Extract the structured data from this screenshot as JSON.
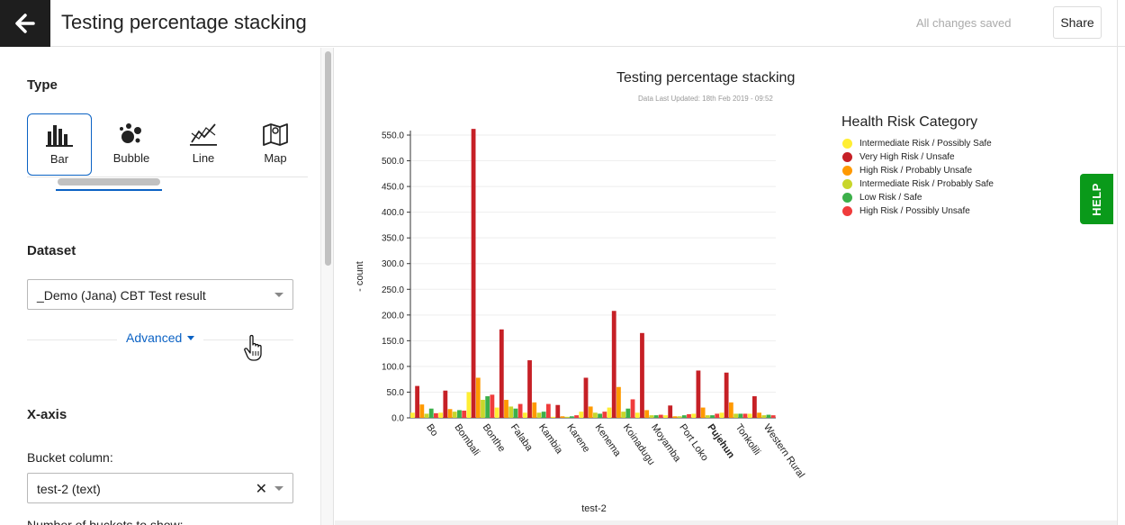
{
  "header": {
    "title": "Testing percentage stacking",
    "status": "All changes saved",
    "share_label": "Share"
  },
  "sidebar": {
    "type_heading": "Type",
    "types": [
      {
        "label": "Bar",
        "icon": "bar-chart-icon",
        "selected": true
      },
      {
        "label": "Bubble",
        "icon": "bubble-chart-icon",
        "selected": false
      },
      {
        "label": "Line",
        "icon": "line-chart-icon",
        "selected": false
      },
      {
        "label": "Map",
        "icon": "map-icon",
        "selected": false
      }
    ],
    "dataset_heading": "Dataset",
    "dataset_value": "_Demo (Jana) CBT Test result",
    "advanced_label": "Advanced",
    "xaxis_heading": "X-axis",
    "bucket_label": "Bucket column:",
    "bucket_value": "test-2 (text)",
    "buckets_count_label": "Number of buckets to show:"
  },
  "help_label": "HELP",
  "colors": {
    "accent": "#0b62c4",
    "help": "#0a9a1a"
  },
  "chart_data": {
    "type": "bar",
    "title": "Testing percentage stacking",
    "subtitle": "Data Last Updated: 18th Feb 2019 - 09:52",
    "xlabel": "test-2",
    "ylabel": "- count",
    "ylim": [
      0,
      550
    ],
    "yticks": [
      "0.0",
      "50.0",
      "100.0",
      "150.0",
      "200.0",
      "250.0",
      "300.0",
      "350.0",
      "400.0",
      "450.0",
      "500.0",
      "550.0"
    ],
    "grid": true,
    "legend_title": "Health Risk Category",
    "legend_position": "top-right",
    "categories": [
      "Bo",
      "Bombali",
      "Bonthe",
      "Falaba",
      "Kambia",
      "Karene",
      "Kenema",
      "Koinadugu",
      "Moyamba",
      "Port Loko",
      "Pujehun",
      "Tonkolili",
      "Western Rural"
    ],
    "series": [
      {
        "name": "Intermediate Risk / Possibly Safe",
        "color": "#ffee33",
        "values": [
          10,
          10,
          50,
          20,
          10,
          2,
          12,
          20,
          10,
          5,
          8,
          10,
          8
        ]
      },
      {
        "name": "Very High Risk / Unsafe",
        "color": "#c62026",
        "values": [
          62,
          53,
          562,
          172,
          112,
          25,
          78,
          208,
          165,
          24,
          92,
          88,
          42
        ]
      },
      {
        "name": "High Risk / Probably Unsafe",
        "color": "#ff9900",
        "values": [
          26,
          17,
          78,
          35,
          30,
          3,
          22,
          60,
          15,
          3,
          20,
          30,
          10
        ]
      },
      {
        "name": "Intermediate Risk / Probably Safe",
        "color": "#c8d62b",
        "values": [
          8,
          12,
          35,
          22,
          10,
          2,
          10,
          12,
          5,
          3,
          5,
          8,
          5
        ]
      },
      {
        "name": "Low Risk / Safe",
        "color": "#3cb04a",
        "values": [
          18,
          15,
          42,
          18,
          12,
          3,
          8,
          18,
          5,
          5,
          5,
          8,
          6
        ]
      },
      {
        "name": "High Risk / Possibly Unsafe",
        "color": "#f03c3c",
        "values": [
          9,
          14,
          45,
          27,
          27,
          5,
          12,
          36,
          6,
          7,
          8,
          8,
          5
        ]
      }
    ],
    "bold_category": "Pujehun"
  }
}
